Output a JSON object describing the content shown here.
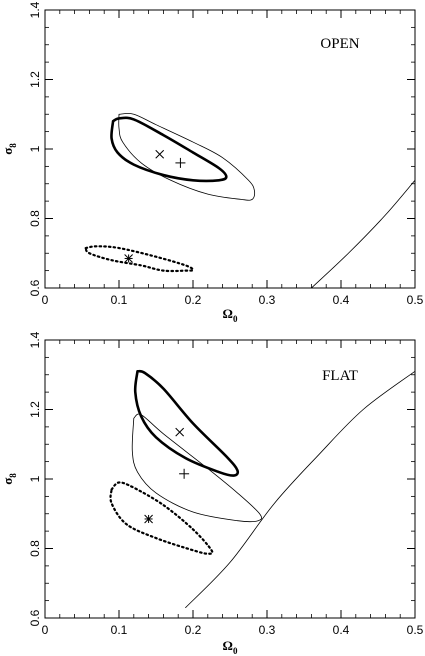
{
  "chart_data": [
    {
      "type": "scatter",
      "panel_label": "OPEN",
      "xlabel": "Ω0",
      "xlabel_main": "Ω",
      "xlabel_sub": "0",
      "ylabel": "σ8",
      "ylabel_main": "σ",
      "ylabel_sub": "8",
      "xlim": [
        0,
        0.5
      ],
      "ylim": [
        0.6,
        1.4
      ],
      "xticks": [
        "0",
        "0.1",
        "0.2",
        "0.3",
        "0.4",
        "0.5"
      ],
      "yticks": [
        "0.6",
        "0.8",
        "1",
        "1.2",
        "1.4"
      ],
      "grid": false,
      "series": [
        {
          "style": "thick",
          "points": [
            [
              0.092,
              1.08
            ],
            [
              0.1,
              1.088
            ],
            [
              0.12,
              1.085
            ],
            [
              0.16,
              1.04
            ],
            [
              0.2,
              0.99
            ],
            [
              0.235,
              0.945
            ],
            [
              0.245,
              0.92
            ],
            [
              0.235,
              0.91
            ],
            [
              0.2,
              0.91
            ],
            [
              0.16,
              0.925
            ],
            [
              0.12,
              0.955
            ],
            [
              0.098,
              0.99
            ],
            [
              0.09,
              1.03
            ],
            [
              0.092,
              1.08
            ]
          ]
        },
        {
          "style": "thin",
          "points": [
            [
              0.1,
              1.1
            ],
            [
              0.12,
              1.1
            ],
            [
              0.15,
              1.07
            ],
            [
              0.2,
              1.02
            ],
            [
              0.24,
              0.975
            ],
            [
              0.275,
              0.91
            ],
            [
              0.283,
              0.88
            ],
            [
              0.28,
              0.855
            ],
            [
              0.265,
              0.855
            ],
            [
              0.22,
              0.87
            ],
            [
              0.17,
              0.91
            ],
            [
              0.13,
              0.96
            ],
            [
              0.105,
              1.02
            ],
            [
              0.1,
              1.06
            ],
            [
              0.1,
              1.1
            ]
          ]
        },
        {
          "style": "dotted",
          "points": [
            [
              0.055,
              0.715
            ],
            [
              0.07,
              0.72
            ],
            [
              0.1,
              0.715
            ],
            [
              0.15,
              0.69
            ],
            [
              0.19,
              0.665
            ],
            [
              0.2,
              0.652
            ],
            [
              0.19,
              0.65
            ],
            [
              0.16,
              0.65
            ],
            [
              0.13,
              0.665
            ],
            [
              0.09,
              0.68
            ],
            [
              0.06,
              0.7
            ],
            [
              0.055,
              0.715
            ]
          ]
        },
        {
          "style": "thin",
          "points": [
            [
              0.36,
              0.6
            ],
            [
              0.41,
              0.7
            ],
            [
              0.46,
              0.81
            ],
            [
              0.5,
              0.91
            ]
          ]
        }
      ],
      "markers": [
        {
          "symbol": "x",
          "x": 0.155,
          "y": 0.985
        },
        {
          "symbol": "+",
          "x": 0.183,
          "y": 0.96
        },
        {
          "symbol": "*",
          "x": 0.113,
          "y": 0.685
        }
      ]
    },
    {
      "type": "scatter",
      "panel_label": "FLAT",
      "xlabel": "Ω0",
      "xlabel_main": "Ω",
      "xlabel_sub": "0",
      "ylabel": "σ8",
      "ylabel_main": "σ",
      "ylabel_sub": "8",
      "xlim": [
        0,
        0.5
      ],
      "ylim": [
        0.6,
        1.4
      ],
      "xticks": [
        "0",
        "0.1",
        "0.2",
        "0.3",
        "0.4",
        "0.5"
      ],
      "yticks": [
        "0.6",
        "0.8",
        "1",
        "1.2",
        "1.4"
      ],
      "grid": false,
      "series": [
        {
          "style": "thick",
          "points": [
            [
              0.125,
              1.31
            ],
            [
              0.135,
              1.305
            ],
            [
              0.16,
              1.26
            ],
            [
              0.2,
              1.16
            ],
            [
              0.245,
              1.065
            ],
            [
              0.26,
              1.025
            ],
            [
              0.255,
              1.01
            ],
            [
              0.235,
              1.02
            ],
            [
              0.19,
              1.06
            ],
            [
              0.15,
              1.12
            ],
            [
              0.13,
              1.18
            ],
            [
              0.122,
              1.25
            ],
            [
              0.125,
              1.31
            ]
          ]
        },
        {
          "style": "thin",
          "points": [
            [
              0.12,
              1.175
            ],
            [
              0.13,
              1.185
            ],
            [
              0.16,
              1.13
            ],
            [
              0.22,
              1.03
            ],
            [
              0.26,
              0.96
            ],
            [
              0.29,
              0.9
            ],
            [
              0.288,
              0.88
            ],
            [
              0.26,
              0.88
            ],
            [
              0.2,
              0.905
            ],
            [
              0.15,
              0.96
            ],
            [
              0.125,
              1.02
            ],
            [
              0.118,
              1.08
            ],
            [
              0.12,
              1.175
            ]
          ]
        },
        {
          "style": "dotted",
          "points": [
            [
              0.09,
              0.97
            ],
            [
              0.1,
              0.99
            ],
            [
              0.12,
              0.975
            ],
            [
              0.16,
              0.925
            ],
            [
              0.2,
              0.855
            ],
            [
              0.225,
              0.795
            ],
            [
              0.22,
              0.785
            ],
            [
              0.2,
              0.795
            ],
            [
              0.15,
              0.83
            ],
            [
              0.11,
              0.87
            ],
            [
              0.09,
              0.93
            ],
            [
              0.09,
              0.97
            ]
          ]
        },
        {
          "style": "thin",
          "points": [
            [
              0.19,
              0.63
            ],
            [
              0.25,
              0.76
            ],
            [
              0.31,
              0.93
            ],
            [
              0.37,
              1.07
            ],
            [
              0.43,
              1.2
            ],
            [
              0.5,
              1.31
            ]
          ]
        }
      ],
      "markers": [
        {
          "symbol": "x",
          "x": 0.182,
          "y": 1.135
        },
        {
          "symbol": "+",
          "x": 0.188,
          "y": 1.015
        },
        {
          "symbol": "*",
          "x": 0.14,
          "y": 0.885
        }
      ]
    }
  ]
}
